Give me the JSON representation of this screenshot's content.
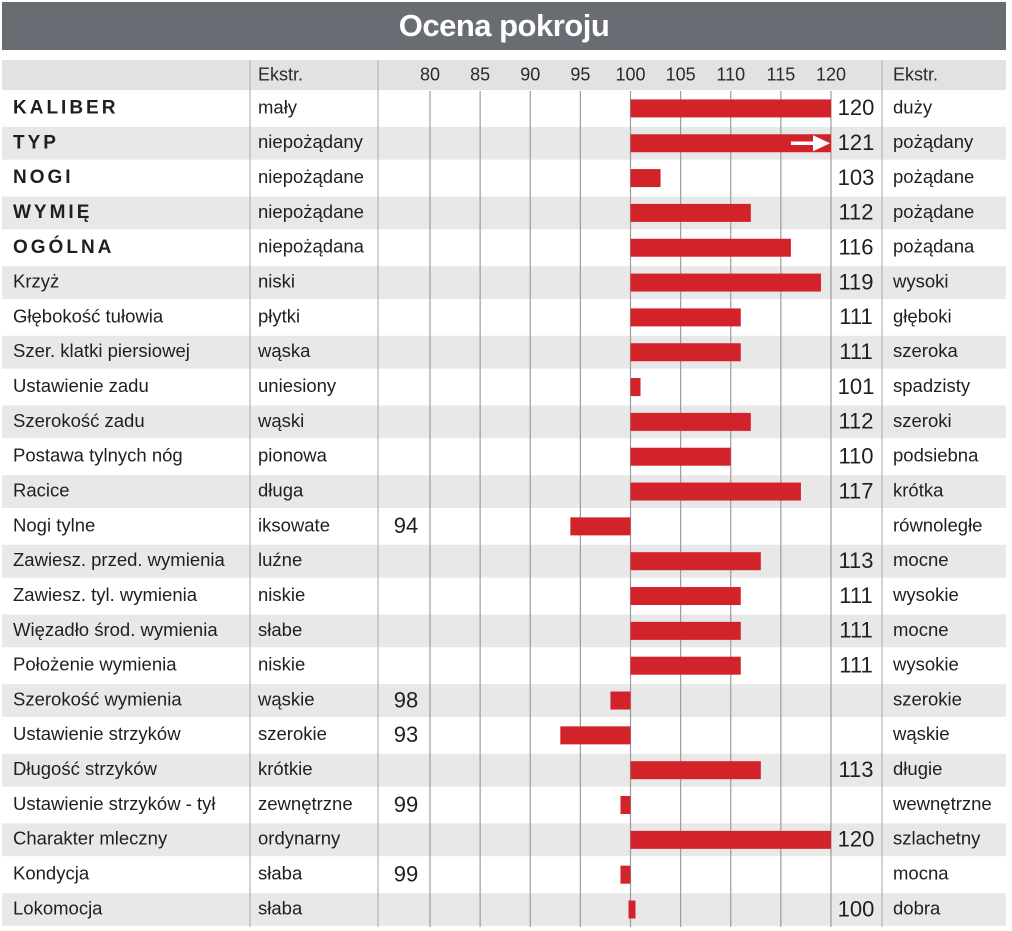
{
  "chart_data": {
    "type": "bar",
    "title": "Ocena pokroju",
    "header": {
      "left_extreme": "Ekstr.",
      "right_extreme": "Ekstr."
    },
    "baseline": 100,
    "ticks": [
      80,
      85,
      90,
      95,
      100,
      105,
      110,
      115,
      120
    ],
    "xlim": [
      80,
      120
    ],
    "grid": true,
    "bar_color": "#d2232a",
    "rows": [
      {
        "trait": "KALIBER",
        "bold": true,
        "left": "mały",
        "value": 120,
        "label": "120",
        "right": "duży"
      },
      {
        "trait": "TYP",
        "bold": true,
        "left": "niepożądany",
        "value": 121,
        "label": "121",
        "right": "pożądany",
        "overflow_arrow": true
      },
      {
        "trait": "NOGI",
        "bold": true,
        "left": "niepożądane",
        "value": 103,
        "label": "103",
        "right": "pożądane"
      },
      {
        "trait": "WYMIĘ",
        "bold": true,
        "left": "niepożądane",
        "value": 112,
        "label": "112",
        "right": "pożądane"
      },
      {
        "trait": "OGÓLNA",
        "bold": true,
        "left": "niepożądana",
        "value": 116,
        "label": "116",
        "right": "pożądana"
      },
      {
        "trait": "Krzyż",
        "bold": false,
        "left": "niski",
        "value": 119,
        "label": "119",
        "right": "wysoki"
      },
      {
        "trait": "Głębokość tułowia",
        "bold": false,
        "left": "płytki",
        "value": 111,
        "label": "111",
        "right": "głęboki"
      },
      {
        "trait": "Szer. klatki piersiowej",
        "bold": false,
        "left": "wąska",
        "value": 111,
        "label": "111",
        "right": "szeroka"
      },
      {
        "trait": "Ustawienie zadu",
        "bold": false,
        "left": "uniesiony",
        "value": 101,
        "label": "101",
        "right": "spadzisty"
      },
      {
        "trait": "Szerokość zadu",
        "bold": false,
        "left": "wąski",
        "value": 112,
        "label": "112",
        "right": "szeroki"
      },
      {
        "trait": "Postawa tylnych nóg",
        "bold": false,
        "left": "pionowa",
        "value": 110,
        "label": "110",
        "right": "podsiebna"
      },
      {
        "trait": "Racice",
        "bold": false,
        "left": "długa",
        "value": 117,
        "label": "117",
        "right": "krótka"
      },
      {
        "trait": "Nogi tylne",
        "bold": false,
        "left": "iksowate",
        "value": 94,
        "label": "94",
        "right": "równoległe"
      },
      {
        "trait": "Zawiesz. przed. wymienia",
        "bold": false,
        "left": "luźne",
        "value": 113,
        "label": "113",
        "right": "mocne"
      },
      {
        "trait": "Zawiesz. tyl. wymienia",
        "bold": false,
        "left": "niskie",
        "value": 111,
        "label": "111",
        "right": "wysokie"
      },
      {
        "trait": "Więzadło środ. wymienia",
        "bold": false,
        "left": "słabe",
        "value": 111,
        "label": "111",
        "right": "mocne"
      },
      {
        "trait": "Położenie wymienia",
        "bold": false,
        "left": "niskie",
        "value": 111,
        "label": "111",
        "right": "wysokie"
      },
      {
        "trait": "Szerokość wymienia",
        "bold": false,
        "left": "wąskie",
        "value": 98,
        "label": "98",
        "right": "szerokie"
      },
      {
        "trait": "Ustawienie strzyków",
        "bold": false,
        "left": "szerokie",
        "value": 93,
        "label": "93",
        "right": "wąskie"
      },
      {
        "trait": "Długość strzyków",
        "bold": false,
        "left": "krótkie",
        "value": 113,
        "label": "113",
        "right": "długie"
      },
      {
        "trait": "Ustawienie strzyków - tył",
        "bold": false,
        "left": "zewnętrzne",
        "value": 99,
        "label": "99",
        "right": "wewnętrzne"
      },
      {
        "trait": "Charakter mleczny",
        "bold": false,
        "left": "ordynarny",
        "value": 120,
        "label": "120",
        "right": "szlachetny"
      },
      {
        "trait": "Kondycja",
        "bold": false,
        "left": "słaba",
        "value": 99,
        "label": "99",
        "right": "mocna"
      },
      {
        "trait": "Lokomocja",
        "bold": false,
        "left": "słaba",
        "value": 100,
        "label": "100",
        "right": "dobra"
      }
    ]
  }
}
